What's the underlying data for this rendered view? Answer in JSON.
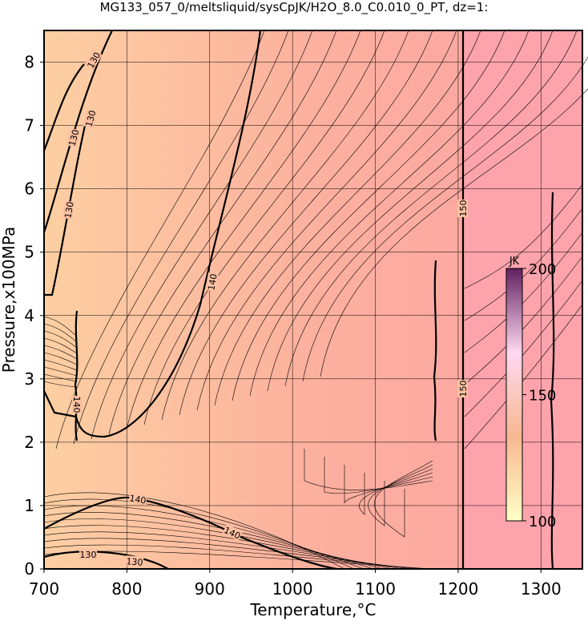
{
  "chart_data": {
    "type": "contour",
    "title": "MG133_057_0/meltsliquid/sysCpJK/H2O_8.0_C0.010_0_PT, dz=1:",
    "x_label": "Temperature,°C",
    "y_label": "Pressure,x100MPa",
    "xlim": [
      700,
      1350
    ],
    "ylim": [
      0,
      8.5
    ],
    "xticks": [
      700,
      800,
      900,
      1000,
      1100,
      1200,
      1300
    ],
    "yticks": [
      0,
      1,
      2,
      3,
      4,
      5,
      6,
      7,
      8
    ],
    "grid": true,
    "contour_labels": [
      130,
      130,
      130,
      130,
      140,
      140,
      140,
      140,
      130,
      130,
      150,
      150
    ],
    "colorbar": {
      "label": "JK",
      "lim": [
        100,
        200
      ],
      "ticks": [
        100,
        150,
        200
      ],
      "colors": [
        "#ffffc8",
        "#f8b890",
        "#ffd8f0",
        "#602060"
      ]
    }
  }
}
